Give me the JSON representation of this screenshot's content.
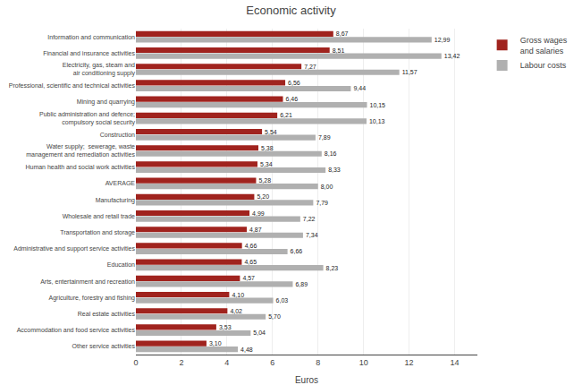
{
  "chart_data": {
    "type": "bar",
    "orientation": "horizontal",
    "title": "Economic activity",
    "xlabel": "Euros",
    "categories": [
      "Information and communication",
      "Financial and insurance activities",
      "Electricity, gas, steam and\nair conditioning supply",
      "Professional, scientific and technical activities",
      "Mining and quarrying",
      "Public administration and defence;\ncompulsory social security",
      "Construction",
      "Water supply;  sewerage, waste\nmanagement and remediation activities",
      "Human health and social work activities",
      "AVERAGE",
      "Manufacturing",
      "Wholesale and retail trade",
      "Transportation and storage",
      "Administrative and support service activities",
      "Education",
      "Arts, entertainment and recreation",
      "Agriculture, forestry and fishing",
      "Real estate activities",
      "Accommodation and food service activities",
      "Other service activities"
    ],
    "series": [
      {
        "name": "Gross wages\nand salaries",
        "color": "#A0231E",
        "values": [
          8.67,
          8.51,
          7.27,
          6.56,
          6.46,
          6.21,
          5.54,
          5.38,
          5.34,
          5.28,
          5.2,
          4.99,
          4.87,
          4.66,
          4.65,
          4.57,
          4.1,
          4.02,
          3.53,
          3.1
        ],
        "value_labels": [
          "8,67",
          "8,51",
          "7,27",
          "6,56",
          "6,46",
          "6,21",
          "5,54",
          "5,38",
          "5,34",
          "5,28",
          "5,20",
          "4,99",
          "4,87",
          "4,66",
          "4,65",
          "4,57",
          "4,10",
          "4,02",
          "3,53",
          "3,10"
        ]
      },
      {
        "name": "Labour costs",
        "color": "#B0B0B0",
        "values": [
          12.99,
          13.42,
          11.57,
          9.44,
          10.15,
          10.13,
          7.89,
          8.16,
          8.33,
          8.0,
          7.79,
          7.22,
          7.34,
          6.66,
          8.23,
          6.89,
          6.03,
          5.7,
          5.04,
          4.48
        ],
        "value_labels": [
          "12,99",
          "13,42",
          "11,57",
          "9,44",
          "10,15",
          "10,13",
          "7,89",
          "8,16",
          "8,33",
          "8,00",
          "7,79",
          "7,22",
          "7,34",
          "6,66",
          "8,23",
          "6,89",
          "6,03",
          "5,70",
          "5,04",
          "4,48"
        ]
      }
    ],
    "xlim": [
      0,
      15
    ],
    "xticks": [
      0,
      2,
      4,
      6,
      8,
      10,
      12,
      14
    ],
    "grid": true,
    "legend": "right",
    "data_labels": true
  }
}
